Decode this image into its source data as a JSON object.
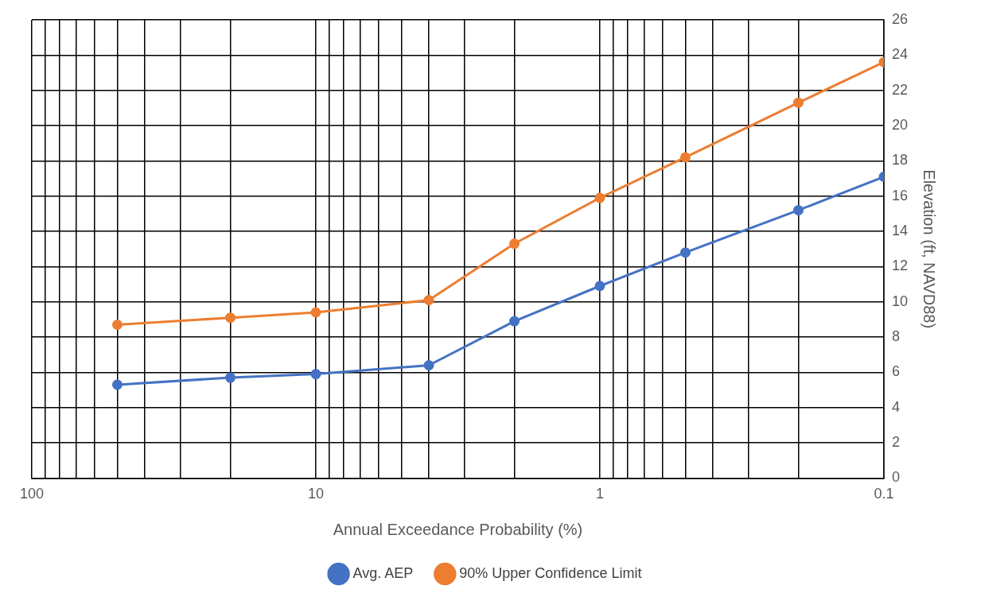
{
  "chart_data": {
    "type": "line",
    "xlabel": "Annual Exceedance Probability (%)",
    "ylabel": "Elevation (ft, NAVD88)",
    "x": [
      50,
      20,
      10,
      4,
      2,
      1,
      0.5,
      0.2,
      0.1
    ],
    "series": [
      {
        "name": "Avg. AEP",
        "color": "#4472c4",
        "values": [
          5.3,
          5.7,
          5.9,
          6.4,
          8.9,
          10.9,
          12.8,
          15.2,
          17.1
        ]
      },
      {
        "name": "90% Upper Confidence Limit",
        "color": "#ed7d31",
        "values": [
          8.7,
          9.1,
          9.4,
          10.1,
          13.3,
          15.9,
          18.2,
          21.3,
          23.6
        ]
      }
    ],
    "log": "x",
    "xlim": [
      100,
      0.1
    ],
    "xticks": [
      100,
      {
        "value": 90,
        "label": null
      },
      {
        "value": 80,
        "label": null
      },
      {
        "value": 70,
        "label": null
      },
      {
        "value": 60,
        "label": null
      },
      {
        "value": 50,
        "label": null
      },
      {
        "value": 40,
        "label": null
      },
      {
        "value": 30,
        "label": null
      },
      {
        "value": 20,
        "label": null
      },
      10,
      {
        "value": 9,
        "label": null
      },
      {
        "value": 8,
        "label": null
      },
      {
        "value": 7,
        "label": null
      },
      {
        "value": 6,
        "label": null
      },
      {
        "value": 5,
        "label": null
      },
      {
        "value": 4,
        "label": null
      },
      {
        "value": 3,
        "label": null
      },
      {
        "value": 2,
        "label": null
      },
      1,
      {
        "value": 0.9,
        "label": null
      },
      {
        "value": 0.8,
        "label": null
      },
      {
        "value": 0.7,
        "label": null
      },
      {
        "value": 0.6,
        "label": null
      },
      {
        "value": 0.5,
        "label": null
      },
      {
        "value": 0.4,
        "label": null
      },
      {
        "value": 0.3,
        "label": null
      },
      {
        "value": 0.2,
        "label": null
      },
      0.1
    ],
    "ylim": [
      0,
      26
    ],
    "yticks": [
      0,
      2,
      4,
      6,
      8,
      10,
      12,
      14,
      16,
      18,
      20,
      22,
      24,
      26
    ],
    "grid": true,
    "legend": "bottom",
    "marker": "circle",
    "line_style": "solid"
  }
}
